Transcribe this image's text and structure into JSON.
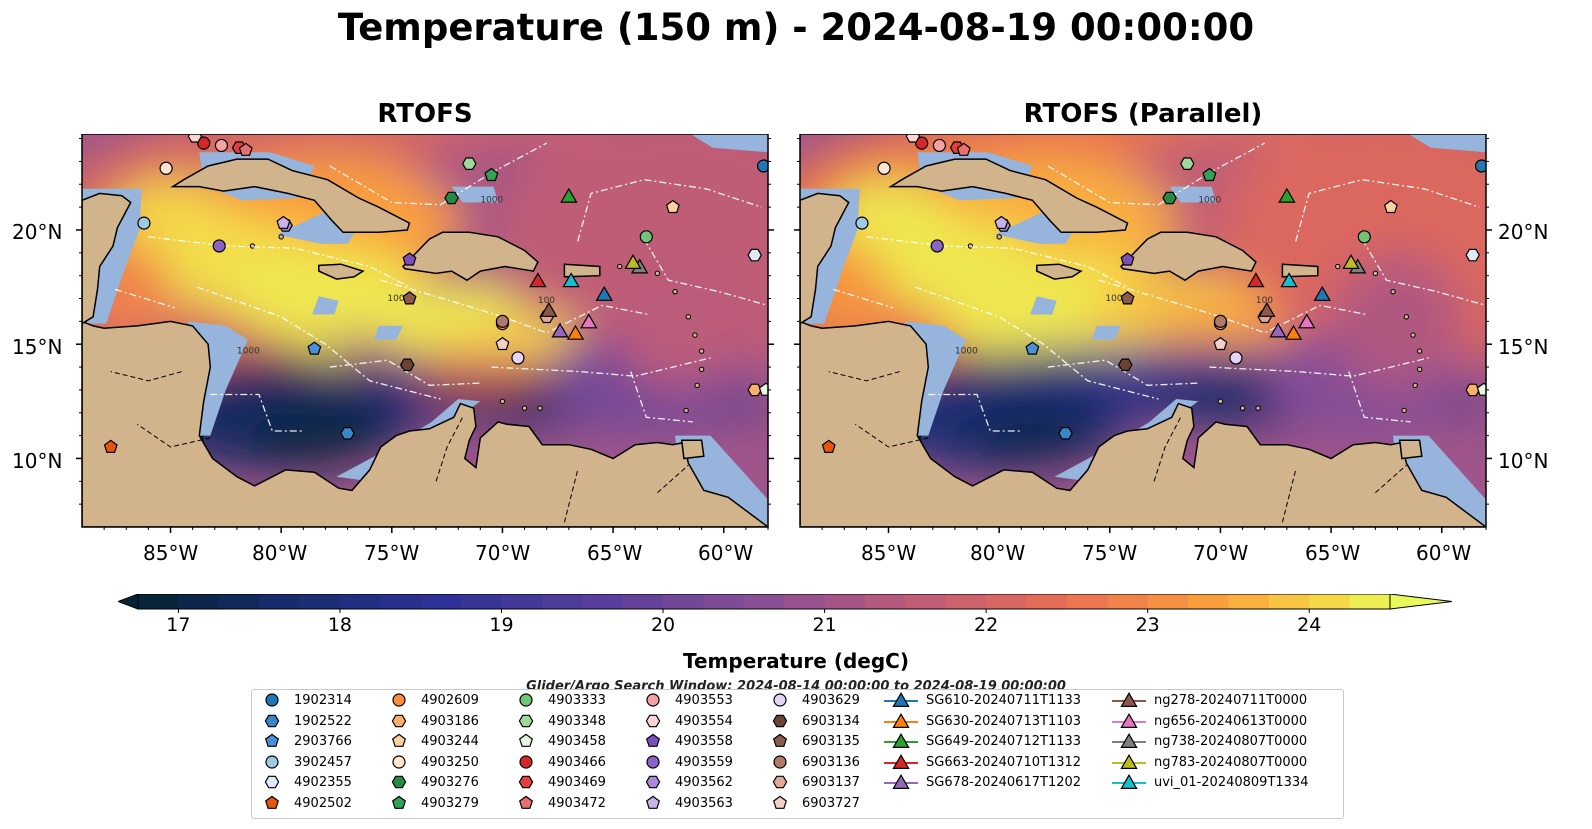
{
  "figure": {
    "title": "Temperature (150 m) - 2024-08-19 00:00:00",
    "panels": [
      "RTOFS",
      "RTOFS (Parallel)"
    ],
    "lon_ticks": [
      "85°W",
      "80°W",
      "75°W",
      "70°W",
      "65°W",
      "60°W"
    ],
    "lat_ticks": [
      "20°N",
      "15°N",
      "10°N"
    ],
    "extent": {
      "lon": [
        -89,
        -58
      ],
      "lat": [
        7,
        24.2
      ]
    },
    "colormap": "thermal",
    "colors": {
      "land": "#d2b48c",
      "shelf": "#96b4dc",
      "deep_ocean": "#042333"
    },
    "bathymetry_labels": [
      "100",
      "1000"
    ]
  },
  "colorbar": {
    "label": "Temperature (degC)",
    "ticks": [
      "17",
      "18",
      "19",
      "20",
      "21",
      "22",
      "23",
      "24"
    ],
    "range": [
      16.75,
      24.5
    ],
    "step": 0.25,
    "extend": "both"
  },
  "search_window": "Glider/Argo Search Window: 2024-08-14 00:00:00 to 2024-08-19 00:00:00",
  "legend": {
    "argo": [
      {
        "id": "1902314",
        "marker": "circle",
        "color": "#1f77b4"
      },
      {
        "id": "1902522",
        "marker": "hexagon",
        "color": "#3a87c8"
      },
      {
        "id": "2903766",
        "marker": "pentagon",
        "color": "#4a90d9"
      },
      {
        "id": "3902457",
        "marker": "circle",
        "color": "#9ecae1"
      },
      {
        "id": "4902355",
        "marker": "hexagon",
        "color": "#deebf7"
      },
      {
        "id": "4902502",
        "marker": "pentagon",
        "color": "#e6550d"
      },
      {
        "id": "4902609",
        "marker": "circle",
        "color": "#fd8d3c"
      },
      {
        "id": "4903186",
        "marker": "hexagon",
        "color": "#fdae6b"
      },
      {
        "id": "4903244",
        "marker": "pentagon",
        "color": "#fdd0a2"
      },
      {
        "id": "4903250",
        "marker": "circle",
        "color": "#fee6ce"
      },
      {
        "id": "4903276",
        "marker": "hexagon",
        "color": "#238b45"
      },
      {
        "id": "4903279",
        "marker": "pentagon",
        "color": "#31a354"
      },
      {
        "id": "4903333",
        "marker": "circle",
        "color": "#74c476"
      },
      {
        "id": "4903348",
        "marker": "hexagon",
        "color": "#a1d99b"
      },
      {
        "id": "4903458",
        "marker": "pentagon",
        "color": "#e5f5e0"
      },
      {
        "id": "4903466",
        "marker": "circle",
        "color": "#d62728"
      },
      {
        "id": "4903469",
        "marker": "hexagon",
        "color": "#de3f3f"
      },
      {
        "id": "4903472",
        "marker": "pentagon",
        "color": "#e76f6f"
      },
      {
        "id": "4903553",
        "marker": "circle",
        "color": "#f3a1a1"
      },
      {
        "id": "4903554",
        "marker": "hexagon",
        "color": "#fcd4d4"
      },
      {
        "id": "4903558",
        "marker": "pentagon",
        "color": "#7b4fb7"
      },
      {
        "id": "4903559",
        "marker": "circle",
        "color": "#8a63c8"
      },
      {
        "id": "4903562",
        "marker": "hexagon",
        "color": "#a98ad6"
      },
      {
        "id": "4903563",
        "marker": "pentagon",
        "color": "#c9b2ea"
      },
      {
        "id": "4903629",
        "marker": "circle",
        "color": "#e4d4f5"
      },
      {
        "id": "6903134",
        "marker": "hexagon",
        "color": "#6b4434"
      },
      {
        "id": "6903135",
        "marker": "pentagon",
        "color": "#8c5a4a"
      },
      {
        "id": "6903136",
        "marker": "circle",
        "color": "#b07a68"
      },
      {
        "id": "6903137",
        "marker": "hexagon",
        "color": "#e0a79a"
      },
      {
        "id": "6903727",
        "marker": "pentagon",
        "color": "#f6d0c6"
      }
    ],
    "gliders": [
      {
        "id": "SG610-20240711T1133",
        "color": "#1f77b4"
      },
      {
        "id": "SG630-20240713T1103",
        "color": "#ff7f0e"
      },
      {
        "id": "SG649-20240712T1133",
        "color": "#2ca02c"
      },
      {
        "id": "SG663-20240710T1312",
        "color": "#d62728"
      },
      {
        "id": "SG678-20240617T1202",
        "color": "#9467bd"
      },
      {
        "id": "ng278-20240711T0000",
        "color": "#8c564b"
      },
      {
        "id": "ng656-20240613T0000",
        "color": "#e377c2"
      },
      {
        "id": "ng738-20240807T0000",
        "color": "#7f7f7f"
      },
      {
        "id": "ng783-20240807T0000",
        "color": "#bcbd22"
      },
      {
        "id": "uvi_01-20240809T1334",
        "color": "#17becf"
      }
    ]
  },
  "markers": {
    "argo_positions": [
      {
        "id": "1902314",
        "lon": -58.2,
        "lat": 22.8
      },
      {
        "id": "1902522",
        "lon": -77.0,
        "lat": 11.1
      },
      {
        "id": "2903766",
        "lon": -78.5,
        "lat": 14.8
      },
      {
        "id": "3902457",
        "lon": -86.2,
        "lat": 20.3
      },
      {
        "id": "4902355",
        "lon": -58.6,
        "lat": 18.9
      },
      {
        "id": "4902502",
        "lon": -87.7,
        "lat": 10.5
      },
      {
        "id": "4902609",
        "lon": -70.0,
        "lat": 15.9
      },
      {
        "id": "4903186",
        "lon": -58.6,
        "lat": 13.0
      },
      {
        "id": "4903244",
        "lon": -62.3,
        "lat": 21.0
      },
      {
        "id": "4903250",
        "lon": -85.2,
        "lat": 22.7
      },
      {
        "id": "4903276",
        "lon": -72.3,
        "lat": 21.4
      },
      {
        "id": "4903279",
        "lon": -70.5,
        "lat": 22.4
      },
      {
        "id": "4903333",
        "lon": -63.5,
        "lat": 19.7
      },
      {
        "id": "4903348",
        "lon": -71.5,
        "lat": 22.9
      },
      {
        "id": "4903458",
        "lon": -58.1,
        "lat": 13.0
      },
      {
        "id": "4903466",
        "lon": -83.5,
        "lat": 23.8
      },
      {
        "id": "4903469",
        "lon": -81.9,
        "lat": 23.6
      },
      {
        "id": "4903472",
        "lon": -81.6,
        "lat": 23.5
      },
      {
        "id": "4903553",
        "lon": -82.7,
        "lat": 23.7
      },
      {
        "id": "4903554",
        "lon": -83.9,
        "lat": 24.1
      },
      {
        "id": "4903558",
        "lon": -74.2,
        "lat": 18.7
      },
      {
        "id": "4903559",
        "lon": -82.8,
        "lat": 19.3
      },
      {
        "id": "4903562",
        "lon": -79.8,
        "lat": 20.2
      },
      {
        "id": "4903563",
        "lon": -79.9,
        "lat": 20.3
      },
      {
        "id": "4903629",
        "lon": -69.3,
        "lat": 14.4
      },
      {
        "id": "6903134",
        "lon": -74.3,
        "lat": 14.1
      },
      {
        "id": "6903135",
        "lon": -74.2,
        "lat": 17.0
      },
      {
        "id": "6903136",
        "lon": -70.0,
        "lat": 16.0
      },
      {
        "id": "6903137",
        "lon": -68.0,
        "lat": 16.2
      },
      {
        "id": "6903727",
        "lon": -70.0,
        "lat": 15.0
      }
    ],
    "glider_positions": [
      {
        "id": "SG610-20240711T1133",
        "lon": -65.4,
        "lat": 17.2
      },
      {
        "id": "SG630-20240713T1103",
        "lon": -66.7,
        "lat": 15.5
      },
      {
        "id": "SG649-20240712T1133",
        "lon": -67.0,
        "lat": 21.5
      },
      {
        "id": "SG663-20240710T1312",
        "lon": -68.4,
        "lat": 17.8
      },
      {
        "id": "SG678-20240617T1202",
        "lon": -67.4,
        "lat": 15.6
      },
      {
        "id": "ng278-20240711T0000",
        "lon": -67.9,
        "lat": 16.5
      },
      {
        "id": "ng656-20240613T0000",
        "lon": -66.1,
        "lat": 16.0
      },
      {
        "id": "ng738-20240807T0000",
        "lon": -63.8,
        "lat": 18.4
      },
      {
        "id": "ng783-20240807T0000",
        "lon": -64.1,
        "lat": 18.6
      },
      {
        "id": "uvi_01-20240809T1334",
        "lon": -66.9,
        "lat": 17.8
      }
    ]
  }
}
